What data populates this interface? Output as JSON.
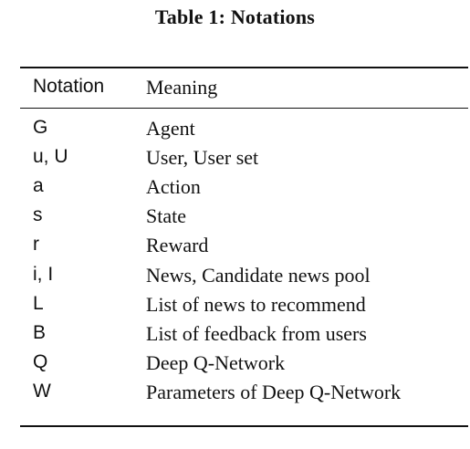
{
  "caption": "Table 1: Notations",
  "table": {
    "headers": {
      "notation": "Notation",
      "meaning": "Meaning"
    },
    "rows": [
      {
        "notation": "G",
        "meaning": "Agent"
      },
      {
        "notation": "u, U",
        "meaning": "User, User set"
      },
      {
        "notation": "a",
        "meaning": "Action"
      },
      {
        "notation": "s",
        "meaning": "State"
      },
      {
        "notation": "r",
        "meaning": "Reward"
      },
      {
        "notation": "i, I",
        "meaning": "News, Candidate news pool"
      },
      {
        "notation": "L",
        "meaning": "List of news to recommend"
      },
      {
        "notation": "B",
        "meaning": "List of feedback from users"
      },
      {
        "notation": "Q",
        "meaning": "Deep Q-Network"
      },
      {
        "notation": "W",
        "meaning": "Parameters of Deep Q-Network"
      }
    ]
  }
}
